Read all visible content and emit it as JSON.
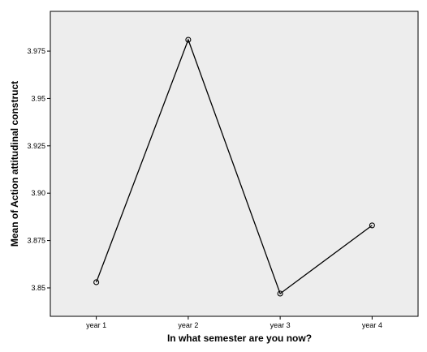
{
  "chart_data": {
    "type": "line",
    "title": "",
    "xlabel": "In what semester are you now?",
    "ylabel": "Mean of Action attitudinal construct",
    "categories": [
      "year 1",
      "year 2",
      "year 3",
      "year 4"
    ],
    "values": [
      3.853,
      3.981,
      3.847,
      3.883
    ],
    "yticks": [
      3.85,
      3.875,
      3.9,
      3.925,
      3.95,
      3.975
    ],
    "ytick_labels": [
      "3.85",
      "3.875",
      "3.90",
      "3.925",
      "3.95",
      "3.975"
    ],
    "ylim": [
      3.835,
      3.996
    ],
    "grid": false,
    "marker": "open-circle",
    "colors": {
      "plot_background": "#ededed",
      "line": "#000000",
      "axis": "#000000"
    }
  }
}
